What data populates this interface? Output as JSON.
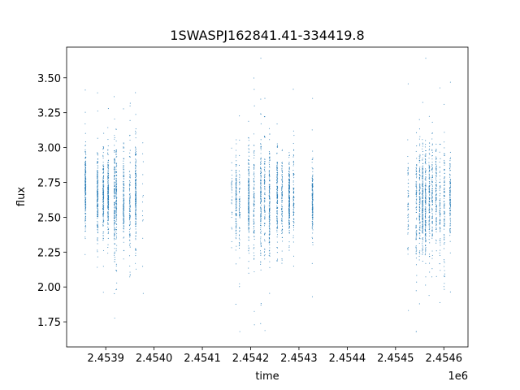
{
  "chart_data": {
    "type": "scatter",
    "title": "1SWASPJ162841.41-334419.8",
    "xlabel": "time",
    "ylabel": "flux",
    "x_offset_label": "1e6",
    "xlim": [
      2453819,
      2454650
    ],
    "ylim": [
      1.57,
      3.72
    ],
    "grid": false,
    "legend": "none",
    "point_color": "#1f77b4",
    "x_ticks": [
      2453900,
      2454000,
      2454100,
      2454200,
      2454300,
      2454400,
      2454500,
      2454600
    ],
    "x_tick_labels": [
      "2.4539",
      "2.4540",
      "2.4541",
      "2.4542",
      "2.4543",
      "2.4544",
      "2.4545",
      "2.4546"
    ],
    "y_ticks": [
      1.75,
      2.0,
      2.25,
      2.5,
      2.75,
      3.0,
      3.25,
      3.5
    ],
    "y_tick_labels": [
      "1.75",
      "2.00",
      "2.25",
      "2.50",
      "2.75",
      "3.00",
      "3.25",
      "3.50"
    ],
    "nightly_columns": [
      {
        "time": 2453858,
        "flux_median": 2.72,
        "flux_spread": 0.14,
        "count": 220
      },
      {
        "time": 2453883,
        "flux_median": 2.65,
        "flux_spread": 0.15,
        "count": 200
      },
      {
        "time": 2453895,
        "flux_median": 2.66,
        "flux_spread": 0.14,
        "count": 180
      },
      {
        "time": 2453905,
        "flux_median": 2.65,
        "flux_spread": 0.14,
        "count": 200
      },
      {
        "time": 2453918,
        "flux_median": 2.63,
        "flux_spread": 0.2,
        "count": 160
      },
      {
        "time": 2453922,
        "flux_median": 2.66,
        "flux_spread": 0.18,
        "count": 140
      },
      {
        "time": 2453937,
        "flux_median": 2.62,
        "flux_spread": 0.15,
        "count": 150
      },
      {
        "time": 2453950,
        "flux_median": 2.6,
        "flux_spread": 0.2,
        "count": 110
      },
      {
        "time": 2453962,
        "flux_median": 2.65,
        "flux_spread": 0.16,
        "count": 200
      },
      {
        "time": 2453977,
        "flux_median": 2.6,
        "flux_spread": 0.25,
        "count": 15
      },
      {
        "time": 2454161,
        "flux_median": 2.62,
        "flux_spread": 0.18,
        "count": 30
      },
      {
        "time": 2454170,
        "flux_median": 2.63,
        "flux_spread": 0.14,
        "count": 130
      },
      {
        "time": 2454177,
        "flux_median": 2.6,
        "flux_spread": 0.16,
        "count": 70
      },
      {
        "time": 2454196,
        "flux_median": 2.63,
        "flux_spread": 0.16,
        "count": 200
      },
      {
        "time": 2454207,
        "flux_median": 2.6,
        "flux_spread": 0.2,
        "count": 110
      },
      {
        "time": 2454221,
        "flux_median": 2.62,
        "flux_spread": 0.22,
        "count": 150
      },
      {
        "time": 2454229,
        "flux_median": 2.6,
        "flux_spread": 0.2,
        "count": 90
      },
      {
        "time": 2454239,
        "flux_median": 2.62,
        "flux_spread": 0.2,
        "count": 160
      },
      {
        "time": 2454255,
        "flux_median": 2.64,
        "flux_spread": 0.15,
        "count": 150
      },
      {
        "time": 2454265,
        "flux_median": 2.63,
        "flux_spread": 0.15,
        "count": 110
      },
      {
        "time": 2454280,
        "flux_median": 2.65,
        "flux_spread": 0.13,
        "count": 220
      },
      {
        "time": 2454289,
        "flux_median": 2.64,
        "flux_spread": 0.15,
        "count": 90
      },
      {
        "time": 2454328,
        "flux_median": 2.62,
        "flux_spread": 0.13,
        "count": 160
      },
      {
        "time": 2454526,
        "flux_median": 2.6,
        "flux_spread": 0.2,
        "count": 60
      },
      {
        "time": 2454543,
        "flux_median": 2.58,
        "flux_spread": 0.22,
        "count": 90
      },
      {
        "time": 2454550,
        "flux_median": 2.6,
        "flux_spread": 0.18,
        "count": 120
      },
      {
        "time": 2454556,
        "flux_median": 2.62,
        "flux_spread": 0.17,
        "count": 200
      },
      {
        "time": 2454562,
        "flux_median": 2.6,
        "flux_spread": 0.2,
        "count": 160
      },
      {
        "time": 2454570,
        "flux_median": 2.63,
        "flux_spread": 0.17,
        "count": 120
      },
      {
        "time": 2454576,
        "flux_median": 2.62,
        "flux_spread": 0.2,
        "count": 110
      },
      {
        "time": 2454584,
        "flux_median": 2.63,
        "flux_spread": 0.17,
        "count": 110
      },
      {
        "time": 2454592,
        "flux_median": 2.6,
        "flux_spread": 0.2,
        "count": 80
      },
      {
        "time": 2454601,
        "flux_median": 2.62,
        "flux_spread": 0.25,
        "count": 110
      },
      {
        "time": 2454613,
        "flux_median": 2.65,
        "flux_spread": 0.15,
        "count": 120
      }
    ]
  }
}
